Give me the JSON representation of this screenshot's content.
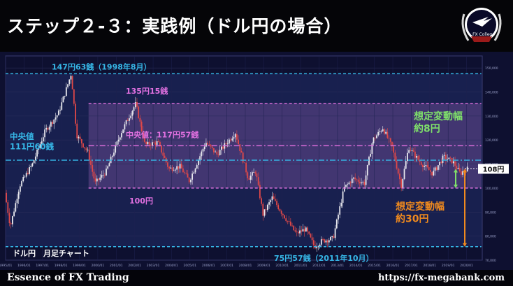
{
  "header": {
    "title": "ステップ２-３：実践例（ドル円の場合）",
    "brand_label": "FX College"
  },
  "footer": {
    "left_text": "Essence of FX Trading",
    "right_text": "https://fx-megabank.com"
  },
  "colors": {
    "cyan": "#36b6e6",
    "pink": "#e070e0",
    "green": "#7fe06a",
    "orange": "#f08a1e",
    "up_candle": "#e8e8ee",
    "down_candle": "#e04848"
  },
  "chart_data": {
    "type": "candlestick",
    "title": "ドル円　月足チャート",
    "ylim": [
      70,
      155
    ],
    "y_ticks": [
      "150,000",
      "140,000",
      "130,000",
      "120,000",
      "110,000",
      "100,000",
      "90,000",
      "80,000",
      "70,000"
    ],
    "x_ticks": [
      "1995/01",
      "1996/01",
      "1997/01",
      "1998/01",
      "1999/01",
      "2000/01",
      "2001/01",
      "2002/01",
      "2003/01",
      "2004/01",
      "2005/01",
      "2006/01",
      "2007/01",
      "2008/01",
      "2009/01",
      "2010/01",
      "2011/01",
      "2012/01",
      "2013/01",
      "2014/01",
      "2015/01",
      "2016/01",
      "2017/01",
      "2018/01",
      "2019/01",
      "2020/01"
    ],
    "price_path": [
      {
        "date": "1995.0",
        "price": 98
      },
      {
        "date": "1995.3",
        "price": 84
      },
      {
        "date": "1995.8",
        "price": 101
      },
      {
        "date": "1996.5",
        "price": 110
      },
      {
        "date": "1997.2",
        "price": 124
      },
      {
        "date": "1997.9",
        "price": 131
      },
      {
        "date": "1998.6",
        "price": 147.6
      },
      {
        "date": "1998.9",
        "price": 122
      },
      {
        "date": "1999.5",
        "price": 115
      },
      {
        "date": "1999.9",
        "price": 102
      },
      {
        "date": "2000.5",
        "price": 107
      },
      {
        "date": "2001.3",
        "price": 123
      },
      {
        "date": "2002.1",
        "price": 135.2
      },
      {
        "date": "2002.6",
        "price": 118
      },
      {
        "date": "2003.3",
        "price": 119
      },
      {
        "date": "2003.9",
        "price": 108
      },
      {
        "date": "2004.5",
        "price": 109
      },
      {
        "date": "2005.0",
        "price": 103
      },
      {
        "date": "2005.9",
        "price": 119
      },
      {
        "date": "2006.5",
        "price": 114
      },
      {
        "date": "2007.5",
        "price": 123
      },
      {
        "date": "2008.2",
        "price": 104
      },
      {
        "date": "2008.6",
        "price": 107
      },
      {
        "date": "2009.0",
        "price": 89
      },
      {
        "date": "2009.5",
        "price": 96
      },
      {
        "date": "2010.0",
        "price": 90
      },
      {
        "date": "2010.8",
        "price": 81
      },
      {
        "date": "2011.3",
        "price": 83
      },
      {
        "date": "2011.8",
        "price": 75.6
      },
      {
        "date": "2012.2",
        "price": 78
      },
      {
        "date": "2012.8",
        "price": 79
      },
      {
        "date": "2013.4",
        "price": 100
      },
      {
        "date": "2013.9",
        "price": 104
      },
      {
        "date": "2014.5",
        "price": 102
      },
      {
        "date": "2014.95",
        "price": 120
      },
      {
        "date": "2015.5",
        "price": 125
      },
      {
        "date": "2016.0",
        "price": 117
      },
      {
        "date": "2016.5",
        "price": 101
      },
      {
        "date": "2016.9",
        "price": 117
      },
      {
        "date": "2017.5",
        "price": 111
      },
      {
        "date": "2018.2",
        "price": 106
      },
      {
        "date": "2018.8",
        "price": 113
      },
      {
        "date": "2019.3",
        "price": 111
      },
      {
        "date": "2019.7",
        "price": 106
      },
      {
        "date": "2020.0",
        "price": 108
      }
    ],
    "levels": [
      {
        "name": "high",
        "value": 147.6,
        "label": "147円63銭（1998年8月）",
        "color": "#36b6e6",
        "style": "dashed",
        "x_range": [
          "1995.0",
          "2020.8"
        ]
      },
      {
        "name": "upper",
        "value": 135.2,
        "label": "135円15銭",
        "color": "#e070e0",
        "style": "dashed",
        "x_range": [
          "1999.5",
          "2020.8"
        ]
      },
      {
        "name": "center",
        "value": 117.6,
        "label": "中央値：117円57銭",
        "color": "#e070e0",
        "style": "dashdot",
        "x_range": [
          "1999.5",
          "2020.8"
        ]
      },
      {
        "name": "lower",
        "value": 100,
        "label": "100円",
        "color": "#e070e0",
        "style": "dashed",
        "x_range": [
          "1999.5",
          "2020.8"
        ]
      },
      {
        "name": "low",
        "value": 75.6,
        "label": "75円57銭（2011年10月）",
        "color": "#36b6e6",
        "style": "dashed",
        "x_range": [
          "1995.0",
          "2020.8"
        ]
      },
      {
        "name": "mid",
        "value": 111.6,
        "label": "中央値\n111円60銭",
        "color": "#36b6e6",
        "style": "dashdot",
        "x_range": [
          "1995.0",
          "2020.8"
        ]
      }
    ],
    "annotations": [
      {
        "name": "current",
        "label": "108円",
        "value": 108
      },
      {
        "name": "range-small",
        "label": "想定変動幅\n約8円",
        "from": 100,
        "to": 108,
        "color": "#7fe06a"
      },
      {
        "name": "range-large",
        "label": "想定変動幅\n約30円",
        "from": 75.6,
        "to": 108,
        "color": "#f08a1e"
      }
    ]
  }
}
